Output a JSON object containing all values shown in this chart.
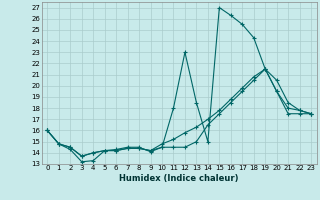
{
  "title": "",
  "xlabel": "Humidex (Indice chaleur)",
  "ylabel": "",
  "background_color": "#c8eaea",
  "grid_color": "#aacccc",
  "line_color": "#006666",
  "xlim": [
    -0.5,
    23.5
  ],
  "ylim": [
    13,
    27.5
  ],
  "yticks": [
    13,
    14,
    15,
    16,
    17,
    18,
    19,
    20,
    21,
    22,
    23,
    24,
    25,
    26,
    27
  ],
  "xticks": [
    0,
    1,
    2,
    3,
    4,
    5,
    6,
    7,
    8,
    9,
    10,
    11,
    12,
    13,
    14,
    15,
    16,
    17,
    18,
    19,
    20,
    21,
    22,
    23
  ],
  "xtick_labels": [
    "0",
    "1",
    "2",
    "3",
    "4",
    "5",
    "6",
    "7",
    "8",
    "9",
    "10",
    "11",
    "12",
    "13",
    "14",
    "15",
    "16",
    "17",
    "18",
    "19",
    "20",
    "21",
    "22",
    "23"
  ],
  "series": [
    {
      "x": [
        0,
        1,
        2,
        3,
        4,
        5,
        6,
        7,
        8,
        9,
        10,
        11,
        12,
        13,
        14,
        15,
        16,
        17,
        18,
        19,
        20,
        21,
        22,
        23
      ],
      "y": [
        16,
        14.8,
        14.3,
        13.2,
        13.3,
        14.2,
        14.3,
        14.5,
        14.5,
        14.1,
        14.5,
        18.0,
        23.0,
        18.5,
        15.0,
        27.0,
        26.3,
        25.5,
        24.3,
        21.5,
        19.5,
        18.0,
        17.8,
        17.5
      ]
    },
    {
      "x": [
        0,
        1,
        2,
        3,
        4,
        5,
        6,
        7,
        8,
        9,
        10,
        11,
        12,
        13,
        14,
        15,
        16,
        17,
        18,
        19,
        20,
        21,
        22,
        23
      ],
      "y": [
        16,
        14.8,
        14.5,
        13.7,
        14.0,
        14.2,
        14.2,
        14.4,
        14.4,
        14.2,
        14.5,
        14.5,
        14.5,
        15.0,
        16.5,
        17.5,
        18.5,
        19.5,
        20.5,
        21.5,
        19.5,
        17.5,
        17.5,
        17.5
      ]
    },
    {
      "x": [
        0,
        1,
        2,
        3,
        4,
        5,
        6,
        7,
        8,
        9,
        10,
        11,
        12,
        13,
        14,
        15,
        16,
        17,
        18,
        19,
        20,
        21,
        22,
        23
      ],
      "y": [
        16,
        14.8,
        14.5,
        13.7,
        14.0,
        14.2,
        14.2,
        14.4,
        14.4,
        14.2,
        14.8,
        15.2,
        15.8,
        16.3,
        17.0,
        17.8,
        18.8,
        19.8,
        20.8,
        21.5,
        20.5,
        18.5,
        17.8,
        17.5
      ]
    }
  ]
}
